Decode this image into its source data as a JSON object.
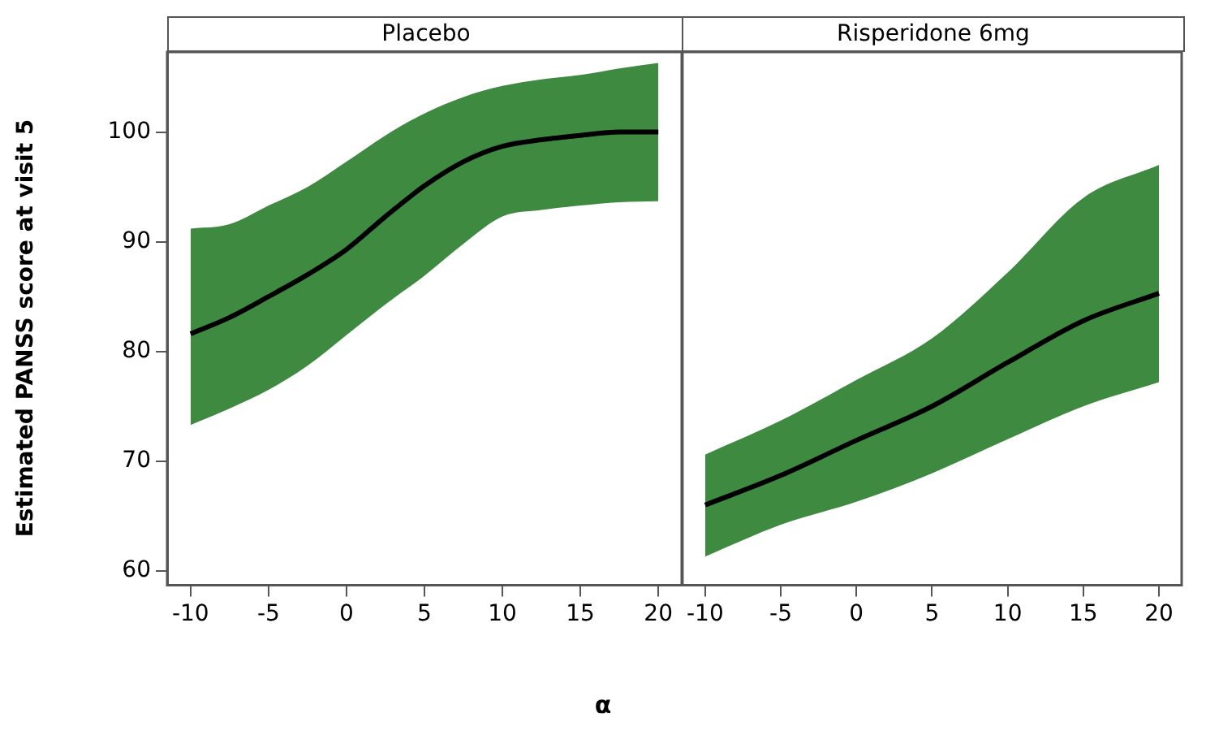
{
  "chart_data": [
    {
      "type": "line",
      "title": "Placebo",
      "ylabel": "Estimated PANSS score at visit 5",
      "xlabel": "α",
      "x": [
        -10,
        -7.5,
        -5,
        -2.5,
        0,
        2.5,
        5,
        7.5,
        10,
        12.5,
        15,
        17.5,
        20
      ],
      "xlim": [
        -11.5,
        21.5
      ],
      "xticks": [
        -10,
        -5,
        0,
        5,
        10,
        15,
        20
      ],
      "ylim": [
        58.7,
        107.3
      ],
      "yticks": [
        60,
        70,
        80,
        90,
        100
      ],
      "series": [
        {
          "color": "#000000",
          "values": [
            81.6,
            83.1,
            85,
            87,
            89.3,
            92.3,
            95.1,
            97.3,
            98.7,
            99.3,
            99.7,
            100,
            100
          ],
          "lower": [
            73.3,
            74.8,
            76.5,
            78.7,
            81.5,
            84.3,
            86.9,
            89.8,
            92.3,
            92.9,
            93.3,
            93.6,
            93.7
          ],
          "upper": [
            91.2,
            91.6,
            93.3,
            95,
            97.3,
            99.7,
            101.7,
            103.2,
            104.2,
            104.8,
            105.2,
            105.8,
            106.3
          ]
        }
      ]
    },
    {
      "type": "line",
      "title": "Risperidone 6mg",
      "x": [
        -10,
        -5,
        0,
        5,
        10,
        15,
        20
      ],
      "xlim": [
        -11.5,
        21.5
      ],
      "xticks": [
        -10,
        -5,
        0,
        5,
        10,
        15,
        20
      ],
      "ylim": [
        58.7,
        107.3
      ],
      "yticks": [
        60,
        70,
        80,
        90,
        100
      ],
      "tick_labels": "x",
      "series": [
        {
          "color": "#000000",
          "values": [
            66,
            68.7,
            71.9,
            75,
            79,
            82.8,
            85.3
          ],
          "lower": [
            61.3,
            64.2,
            66.3,
            68.9,
            72,
            75,
            77.2
          ],
          "upper": [
            70.6,
            73.7,
            77.4,
            81.2,
            87.2,
            94,
            97
          ]
        }
      ]
    }
  ]
}
